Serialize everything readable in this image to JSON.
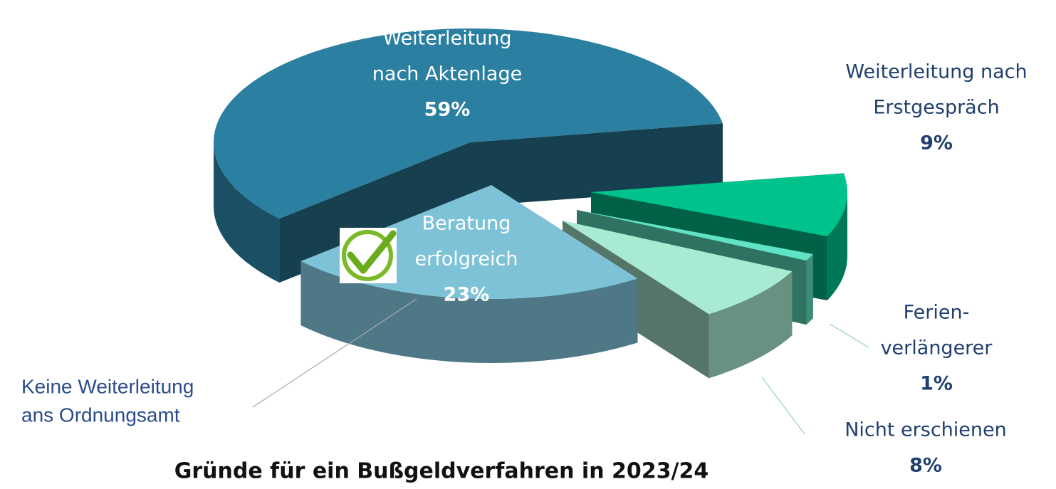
{
  "chart_data": {
    "type": "pie",
    "title": "Gründe für ein Bußgeldverfahren in 2023/24",
    "categories": [
      [
        "Weiterleitung",
        "nach Aktenlage"
      ],
      [
        "Weiterleitung nach",
        "Erstgespräch"
      ],
      [
        "Ferien-",
        "verlängerer"
      ],
      [
        "Nicht erschienen"
      ],
      [
        "Beratung",
        "erfolgreich"
      ]
    ],
    "values": [
      59,
      9,
      1,
      8,
      23
    ],
    "value_labels": [
      "59%",
      "9%",
      "1%",
      "8%",
      "23%"
    ],
    "colors": [
      "#2b7fa0",
      "#00c28c",
      "#5fe3c4",
      "#a9ead2",
      "#7dc2d7"
    ],
    "annotation": [
      "Keine Weiterleitung",
      "ans Ordnungsamt"
    ]
  }
}
